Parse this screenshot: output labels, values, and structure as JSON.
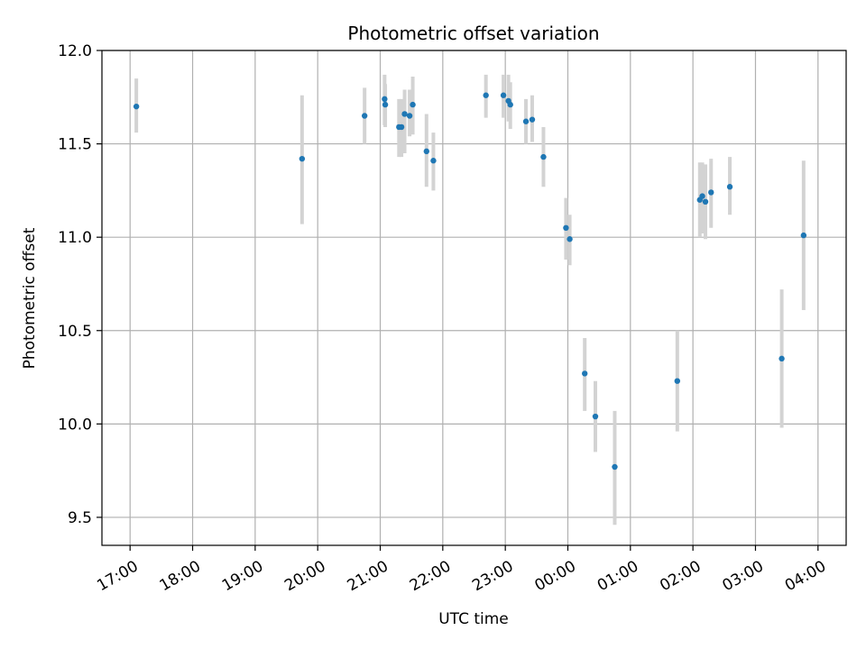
{
  "chart_data": {
    "type": "scatter",
    "title": "Photometric offset variation",
    "xlabel": "UTC time",
    "ylabel": "Photometric offset",
    "ylim": [
      9.35,
      12.0
    ],
    "xlim_hours": [
      16.55,
      28.45
    ],
    "x_ticks": [
      {
        "label": "17:00",
        "hour": 17
      },
      {
        "label": "18:00",
        "hour": 18
      },
      {
        "label": "19:00",
        "hour": 19
      },
      {
        "label": "20:00",
        "hour": 20
      },
      {
        "label": "21:00",
        "hour": 21
      },
      {
        "label": "22:00",
        "hour": 22
      },
      {
        "label": "23:00",
        "hour": 23
      },
      {
        "label": "00:00",
        "hour": 24
      },
      {
        "label": "01:00",
        "hour": 25
      },
      {
        "label": "02:00",
        "hour": 26
      },
      {
        "label": "03:00",
        "hour": 27
      },
      {
        "label": "04:00",
        "hour": 28
      }
    ],
    "y_ticks": [
      {
        "label": "9.5",
        "value": 9.5
      },
      {
        "label": "10.0",
        "value": 10.0
      },
      {
        "label": "10.5",
        "value": 10.5
      },
      {
        "label": "11.0",
        "value": 11.0
      },
      {
        "label": "11.5",
        "value": 11.5
      },
      {
        "label": "12.0",
        "value": 12.0
      }
    ],
    "grid": true,
    "colors": {
      "point": "#1f77b4",
      "error_bar": "#d3d3d3",
      "grid": "#b0b0b0"
    },
    "points": [
      {
        "time": "17:06",
        "hour": 17.1,
        "y": 11.7,
        "lo": 11.56,
        "hi": 11.85
      },
      {
        "time": "19:45",
        "hour": 19.75,
        "y": 11.42,
        "lo": 11.07,
        "hi": 11.76
      },
      {
        "time": "20:45",
        "hour": 20.75,
        "y": 11.65,
        "lo": 11.5,
        "hi": 11.8
      },
      {
        "time": "21:04",
        "hour": 21.07,
        "y": 11.74,
        "lo": 11.6,
        "hi": 11.87
      },
      {
        "time": "21:05",
        "hour": 21.08,
        "y": 11.71,
        "lo": 11.59,
        "hi": 11.82
      },
      {
        "time": "21:18",
        "hour": 21.3,
        "y": 11.59,
        "lo": 11.43,
        "hi": 11.74
      },
      {
        "time": "21:20",
        "hour": 21.34,
        "y": 11.59,
        "lo": 11.43,
        "hi": 11.74
      },
      {
        "time": "21:23",
        "hour": 21.39,
        "y": 11.66,
        "lo": 11.45,
        "hi": 11.79
      },
      {
        "time": "21:28",
        "hour": 21.47,
        "y": 11.65,
        "lo": 11.54,
        "hi": 11.79
      },
      {
        "time": "21:31",
        "hour": 21.52,
        "y": 11.71,
        "lo": 11.55,
        "hi": 11.86
      },
      {
        "time": "21:44",
        "hour": 21.74,
        "y": 11.46,
        "lo": 11.27,
        "hi": 11.66
      },
      {
        "time": "21:51",
        "hour": 21.85,
        "y": 11.41,
        "lo": 11.25,
        "hi": 11.56
      },
      {
        "time": "22:41",
        "hour": 22.69,
        "y": 11.76,
        "lo": 11.64,
        "hi": 11.87
      },
      {
        "time": "22:58",
        "hour": 22.97,
        "y": 11.76,
        "lo": 11.64,
        "hi": 11.87
      },
      {
        "time": "23:03",
        "hour": 23.05,
        "y": 11.73,
        "lo": 11.62,
        "hi": 11.87
      },
      {
        "time": "23:05",
        "hour": 23.08,
        "y": 11.71,
        "lo": 11.58,
        "hi": 11.83
      },
      {
        "time": "23:20",
        "hour": 23.33,
        "y": 11.62,
        "lo": 11.5,
        "hi": 11.74
      },
      {
        "time": "23:26",
        "hour": 23.43,
        "y": 11.63,
        "lo": 11.51,
        "hi": 11.76
      },
      {
        "time": "23:37",
        "hour": 23.61,
        "y": 11.43,
        "lo": 11.27,
        "hi": 11.59
      },
      {
        "time": "23:58",
        "hour": 23.97,
        "y": 11.05,
        "lo": 10.88,
        "hi": 11.21
      },
      {
        "time": "00:02",
        "hour": 24.03,
        "y": 10.99,
        "lo": 10.85,
        "hi": 11.12
      },
      {
        "time": "00:16",
        "hour": 24.27,
        "y": 10.27,
        "lo": 10.07,
        "hi": 10.46
      },
      {
        "time": "00:26",
        "hour": 24.44,
        "y": 10.04,
        "lo": 9.85,
        "hi": 10.23
      },
      {
        "time": "00:45",
        "hour": 24.75,
        "y": 9.77,
        "lo": 9.46,
        "hi": 10.07
      },
      {
        "time": "01:45",
        "hour": 25.75,
        "y": 10.23,
        "lo": 9.96,
        "hi": 10.5
      },
      {
        "time": "02:07",
        "hour": 26.11,
        "y": 11.2,
        "lo": 11.0,
        "hi": 11.4
      },
      {
        "time": "02:09",
        "hour": 26.15,
        "y": 11.22,
        "lo": 11.02,
        "hi": 11.4
      },
      {
        "time": "02:12",
        "hour": 26.2,
        "y": 11.19,
        "lo": 10.99,
        "hi": 11.39
      },
      {
        "time": "02:17",
        "hour": 26.29,
        "y": 11.24,
        "lo": 11.05,
        "hi": 11.42
      },
      {
        "time": "02:35",
        "hour": 26.59,
        "y": 11.27,
        "lo": 11.12,
        "hi": 11.43
      },
      {
        "time": "03:25",
        "hour": 27.42,
        "y": 10.35,
        "lo": 9.98,
        "hi": 10.72
      },
      {
        "time": "03:46",
        "hour": 27.77,
        "y": 11.01,
        "lo": 10.61,
        "hi": 11.41
      }
    ]
  }
}
